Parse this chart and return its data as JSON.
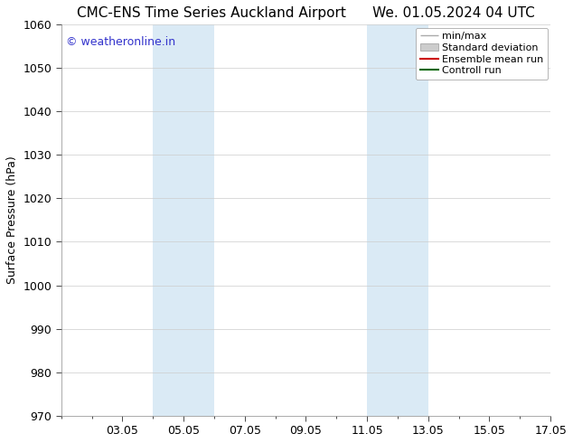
{
  "title": "CMC-ENS Time Series Auckland Airport      We. 01.05.2024 04 UTC",
  "ylabel": "Surface Pressure (hPa)",
  "ylim": [
    970,
    1060
  ],
  "yticks": [
    970,
    980,
    990,
    1000,
    1010,
    1020,
    1030,
    1040,
    1050,
    1060
  ],
  "xlim": [
    1.0,
    17.0
  ],
  "xtick_labels": [
    "03.05",
    "05.05",
    "07.05",
    "09.05",
    "11.05",
    "13.05",
    "15.05",
    "17.05"
  ],
  "xtick_positions": [
    3,
    5,
    7,
    9,
    11,
    13,
    15,
    17
  ],
  "shaded_bands": [
    {
      "xmin": 4.0,
      "xmax": 6.0
    },
    {
      "xmin": 11.0,
      "xmax": 13.0
    }
  ],
  "shade_color": "#daeaf5",
  "watermark_text": "© weatheronline.in",
  "watermark_color": "#3333cc",
  "legend_items": [
    {
      "label": "min/max"
    },
    {
      "label": "Standard deviation"
    },
    {
      "label": "Ensemble mean run"
    },
    {
      "label": "Controll run"
    }
  ],
  "legend_colors": [
    "#aaaaaa",
    "#cccccc",
    "#cc0000",
    "#006600"
  ],
  "bg_color": "#ffffff",
  "plot_bg_color": "#ffffff",
  "grid_color": "#cccccc",
  "title_fontsize": 11,
  "axis_label_fontsize": 9,
  "tick_fontsize": 9,
  "legend_fontsize": 8,
  "watermark_fontsize": 9
}
